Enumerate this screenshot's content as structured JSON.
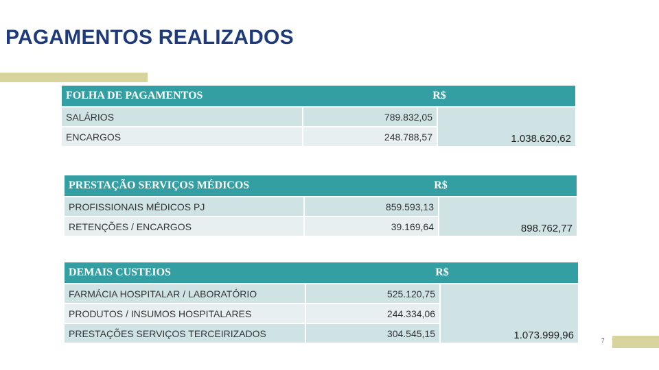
{
  "title": "PAGAMENTOS REALIZADOS",
  "colors": {
    "title": "#1f3a7a",
    "header_bg": "#339fa3",
    "accent": "#d8d49e",
    "row_a": "#cfe3e5",
    "row_b": "#e7eff0"
  },
  "tables": [
    {
      "header": "FOLHA DE PAGAMENTOS",
      "currency": "R$",
      "rows": [
        {
          "label": "SALÁRIOS",
          "value": "789.832,05"
        },
        {
          "label": "ENCARGOS",
          "value": "248.788,57"
        }
      ],
      "total": "1.038.620,62"
    },
    {
      "header": "PRESTAÇÃO SERVIÇOS MÉDICOS",
      "currency": "R$",
      "rows": [
        {
          "label": "PROFISSIONAIS MÉDICOS PJ",
          "value": "859.593,13"
        },
        {
          "label": "RETENÇÕES / ENCARGOS",
          "value": "39.169,64"
        }
      ],
      "total": "898.762,77"
    },
    {
      "header": "DEMAIS CUSTEIOS",
      "currency": "R$",
      "rows": [
        {
          "label": "FARMÁCIA HOSPITALAR / LABORATÓRIO",
          "value": "525.120,75"
        },
        {
          "label": "PRODUTOS / INSUMOS HOSPITALARES",
          "value": "244.334,06"
        },
        {
          "label": "PRESTAÇÕES SERVIÇOS TERCEIRIZADOS",
          "value": "304.545,15"
        }
      ],
      "total": "1.073.999,96"
    }
  ],
  "page_number": "7"
}
